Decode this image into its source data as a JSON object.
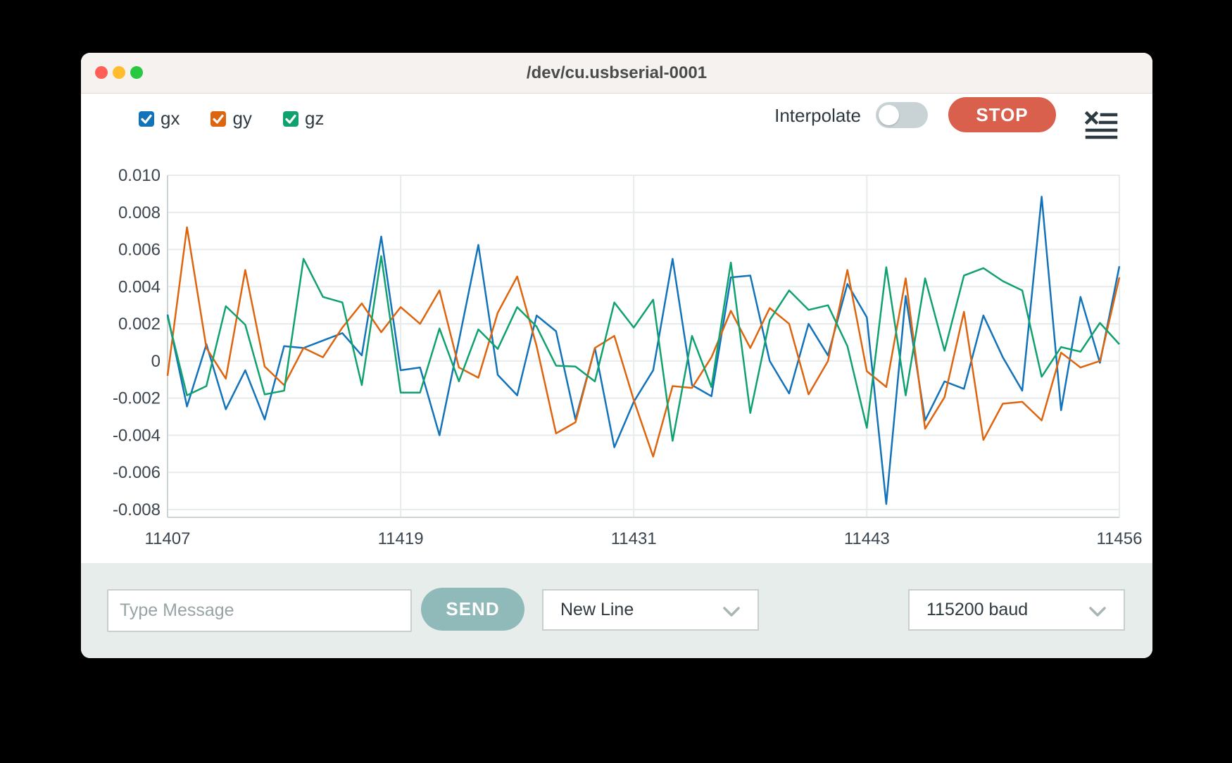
{
  "window": {
    "title": "/dev/cu.usbserial-0001"
  },
  "colors": {
    "accent_blue": "#1273ba",
    "accent_orange": "#de640e",
    "accent_green": "#10a26e",
    "stop_red": "#d9604d",
    "send_teal": "#90baba"
  },
  "toolbar": {
    "series_toggles": [
      {
        "label": "gx",
        "color": "#1273ba",
        "checked": true
      },
      {
        "label": "gy",
        "color": "#de640e",
        "checked": true
      },
      {
        "label": "gz",
        "color": "#10a26e",
        "checked": true
      }
    ],
    "interpolate_label": "Interpolate",
    "interpolate_on": false,
    "stop_label": "STOP"
  },
  "icons": {
    "toolbar_right": "clear-list-icon",
    "select_arrow": "chevron-down-icon",
    "checkbox_mark": "check-icon"
  },
  "chart_data": {
    "type": "line",
    "title": "",
    "xlabel": "",
    "ylabel": "",
    "grid": true,
    "legend_position": "top-left-checkboxes",
    "x_start": 11407,
    "x_ticks": [
      11407,
      11419,
      11431,
      11443,
      11456
    ],
    "x_tick_labels": [
      "11407",
      "11419",
      "11431",
      "11443",
      "11456"
    ],
    "y_ticks": [
      0.01,
      0.008,
      0.006,
      0.004,
      0.002,
      0,
      -0.002,
      -0.004,
      -0.006,
      -0.008
    ],
    "y_tick_labels": [
      "0.010",
      "0.008",
      "0.006",
      "0.004",
      "0.002",
      "0",
      "-0.002",
      "-0.004",
      "-0.006",
      "-0.008"
    ],
    "ylim": [
      -0.00842,
      0.01
    ],
    "series": [
      {
        "name": "gx",
        "color": "#1273ba",
        "values": [
          0.0025,
          -0.00245,
          0.0009,
          -0.0026,
          -0.0005,
          -0.00315,
          0.0008,
          0.0007,
          0.0011,
          0.0015,
          0.0003,
          0.0067,
          -0.0005,
          -0.00035,
          -0.004,
          0.0011,
          0.00625,
          -0.00075,
          -0.00185,
          0.00245,
          0.0016,
          -0.00315,
          0.0007,
          -0.00465,
          -0.0022,
          -0.0005,
          0.0055,
          -0.0013,
          -0.0019,
          0.0045,
          0.0046,
          0.0,
          -0.00175,
          0.002,
          0.0003,
          0.00415,
          0.00235,
          -0.0077,
          0.0035,
          -0.0032,
          -0.0011,
          -0.0015,
          0.00245,
          0.0002,
          -0.0016,
          0.00885,
          -0.00265,
          0.00345,
          -0.0001,
          0.0051
        ]
      },
      {
        "name": "gy",
        "color": "#de640e",
        "values": [
          -0.0008,
          0.0072,
          0.0007,
          -0.00095,
          0.0049,
          -0.0003,
          -0.0013,
          0.0007,
          0.0002,
          0.0018,
          0.0031,
          0.00155,
          0.0029,
          0.002,
          0.0038,
          -0.00035,
          -0.0009,
          0.0026,
          0.00455,
          0.0008,
          -0.0039,
          -0.0033,
          0.0007,
          0.00135,
          -0.0021,
          -0.00515,
          -0.00135,
          -0.00145,
          0.0002,
          0.0027,
          0.0007,
          0.00285,
          0.002,
          -0.0018,
          0.0,
          0.0049,
          -0.00055,
          -0.0014,
          0.00445,
          -0.00365,
          -0.00195,
          0.00265,
          -0.00425,
          -0.0023,
          -0.0022,
          -0.0032,
          0.00045,
          -0.00035,
          0.0,
          0.0045
        ]
      },
      {
        "name": "gz",
        "color": "#10a26e",
        "values": [
          0.0024,
          -0.00185,
          -0.00135,
          0.00295,
          0.00195,
          -0.0018,
          -0.0016,
          0.0055,
          0.00345,
          0.00315,
          -0.0013,
          0.00565,
          -0.0017,
          -0.0017,
          0.00175,
          -0.0011,
          0.0017,
          0.00065,
          0.0029,
          0.00185,
          -0.00025,
          -0.0003,
          -0.0011,
          0.00315,
          0.0018,
          0.0033,
          -0.0043,
          0.00135,
          -0.0014,
          0.0053,
          -0.0028,
          0.0022,
          0.0038,
          0.00275,
          0.003,
          0.0008,
          -0.0036,
          0.00505,
          -0.00185,
          0.00445,
          0.00055,
          0.0046,
          0.005,
          0.0043,
          0.0038,
          -0.00085,
          0.00075,
          0.0005,
          0.00205,
          0.0009
        ]
      }
    ]
  },
  "bottom_bar": {
    "message_placeholder": "Type Message",
    "send_label": "SEND",
    "line_ending_value": "New Line",
    "baud_value": "115200 baud"
  }
}
